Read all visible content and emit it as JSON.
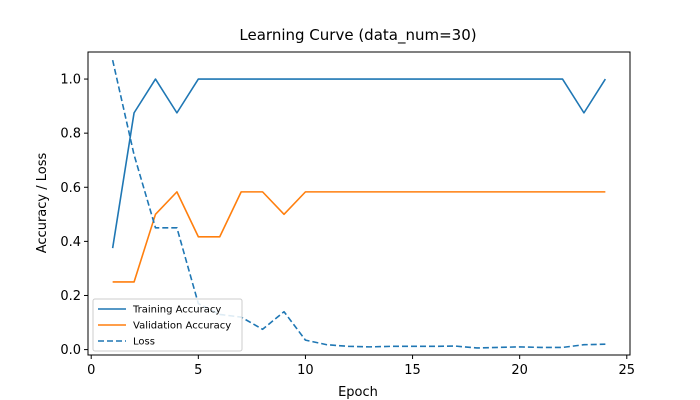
{
  "chart_data": {
    "type": "line",
    "title": "Learning Curve (data_num=30)",
    "xlabel": "Epoch",
    "ylabel": "Accuracy / Loss",
    "xlim": [
      -0.15,
      25.15
    ],
    "ylim": [
      -0.02,
      1.1
    ],
    "xticks": [
      0,
      5,
      10,
      15,
      20,
      25
    ],
    "yticks": [
      0.0,
      0.2,
      0.4,
      0.6,
      0.8,
      1.0
    ],
    "ytick_labels": [
      "0.0",
      "0.2",
      "0.4",
      "0.6",
      "0.8",
      "1.0"
    ],
    "grid": false,
    "legend_position": "lower-left",
    "x": [
      1,
      2,
      3,
      4,
      5,
      6,
      7,
      8,
      9,
      10,
      11,
      12,
      13,
      14,
      15,
      16,
      17,
      18,
      19,
      20,
      21,
      22,
      23,
      24
    ],
    "series": [
      {
        "name": "Training Accuracy",
        "color": "#1f77b4",
        "style": "solid",
        "values": [
          0.375,
          0.875,
          1.0,
          0.875,
          1.0,
          1.0,
          1.0,
          1.0,
          1.0,
          1.0,
          1.0,
          1.0,
          1.0,
          1.0,
          1.0,
          1.0,
          1.0,
          1.0,
          1.0,
          1.0,
          1.0,
          1.0,
          0.875,
          1.0
        ]
      },
      {
        "name": "Validation Accuracy",
        "color": "#ff7f0e",
        "style": "solid",
        "values": [
          0.25,
          0.25,
          0.5,
          0.583,
          0.417,
          0.417,
          0.583,
          0.583,
          0.5,
          0.583,
          0.583,
          0.583,
          0.583,
          0.583,
          0.583,
          0.583,
          0.583,
          0.583,
          0.583,
          0.583,
          0.583,
          0.583,
          0.583,
          0.583
        ]
      },
      {
        "name": "Loss",
        "color": "#1f77b4",
        "style": "dashed",
        "values": [
          1.07,
          0.72,
          0.45,
          0.45,
          0.17,
          0.13,
          0.12,
          0.075,
          0.14,
          0.035,
          0.018,
          0.012,
          0.01,
          0.012,
          0.012,
          0.012,
          0.013,
          0.006,
          0.008,
          0.01,
          0.008,
          0.008,
          0.018,
          0.02
        ]
      }
    ]
  }
}
